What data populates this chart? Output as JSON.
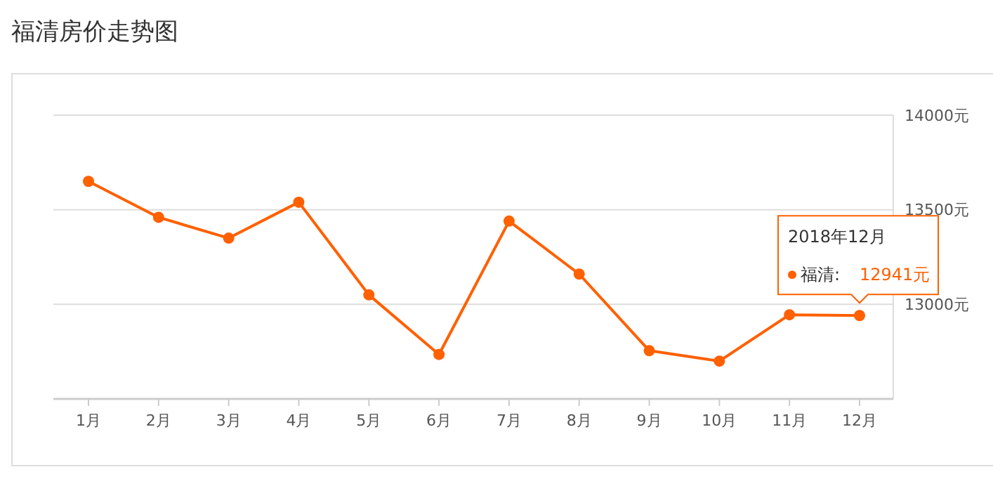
{
  "chart_data": {
    "type": "line",
    "title": "福清房价走势图",
    "categories": [
      "1月",
      "2月",
      "3月",
      "4月",
      "5月",
      "6月",
      "7月",
      "8月",
      "9月",
      "10月",
      "11月",
      "12月"
    ],
    "series": [
      {
        "color": "#ff6000",
        "values": [
          13650,
          13460,
          13350,
          13540,
          13050,
          12735,
          13440,
          13160,
          12755,
          12700,
          12945,
          12941
        ]
      }
    ],
    "ylim": [
      12500,
      14000
    ],
    "yticks": [
      {
        "value": 12500,
        "label": null
      },
      {
        "value": 13000,
        "label": "13000元"
      },
      {
        "value": 13500,
        "label": "13500元"
      },
      {
        "value": 14000,
        "label": "14000元"
      }
    ],
    "grid": "y",
    "marker": "circle",
    "line_style": "solid",
    "annotations": [
      "2018年12月",
      {
        "text": "福清:",
        "x": "12月",
        "y": 12941
      },
      {
        "text": "12941元",
        "x": "12月",
        "y": 12941
      }
    ]
  }
}
